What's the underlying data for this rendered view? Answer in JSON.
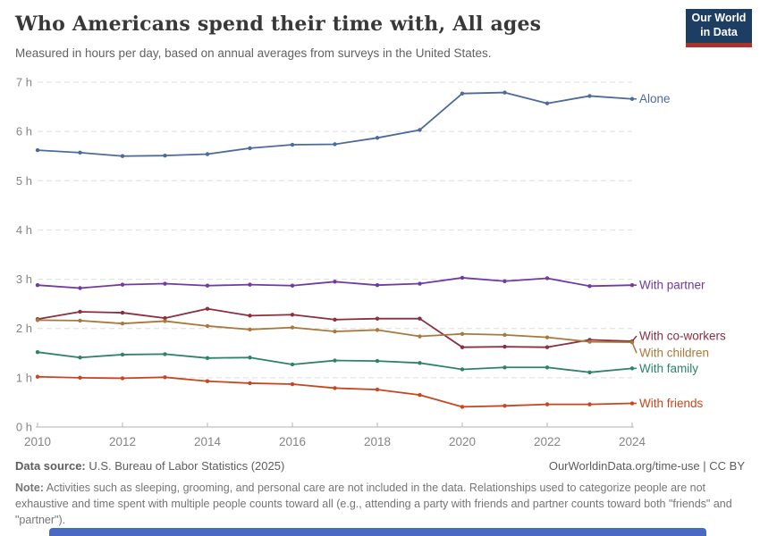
{
  "header": {
    "title": "Who Americans spend their time with, All ages",
    "subtitle": "Measured in hours per day, based on annual averages from surveys in the United States.",
    "logo": {
      "line1": "Our World",
      "line2": "in Data",
      "bg": "#1d3d63",
      "accent": "#b0302c"
    }
  },
  "chart_data": {
    "type": "line",
    "title": "Who Americans spend their time with, All ages",
    "subtitle": "Measured in hours per day, based on annual averages from surveys in the United States",
    "xlabel": "",
    "ylabel": "hours per day",
    "ylim": [
      0,
      7
    ],
    "grid": "horizontal-dashed",
    "legend_position": "labels-at-line-ends",
    "x": [
      2010,
      2011,
      2012,
      2013,
      2014,
      2015,
      2016,
      2017,
      2018,
      2019,
      2020,
      2021,
      2022,
      2023,
      2024
    ],
    "x_tick_labels": [
      "2010",
      "2012",
      "2014",
      "2016",
      "2018",
      "2020",
      "2022",
      "2024"
    ],
    "y_tick_labels": [
      "0 h",
      "1 h",
      "2 h",
      "3 h",
      "4 h",
      "5 h",
      "6 h",
      "7 h"
    ],
    "series": [
      {
        "name": "Alone",
        "color": "#4c6a9c",
        "values": [
          5.62,
          5.57,
          5.5,
          5.51,
          5.54,
          5.66,
          5.73,
          5.74,
          5.87,
          6.03,
          6.77,
          6.79,
          6.57,
          6.72,
          6.66
        ]
      },
      {
        "name": "With partner",
        "color": "#7139a3",
        "values": [
          2.88,
          2.82,
          2.89,
          2.91,
          2.87,
          2.89,
          2.87,
          2.95,
          2.88,
          2.91,
          3.03,
          2.96,
          3.02,
          2.86,
          2.88
        ]
      },
      {
        "name": "With co-workers",
        "color": "#8b2e3f",
        "values": [
          2.19,
          2.34,
          2.32,
          2.21,
          2.4,
          2.26,
          2.28,
          2.18,
          2.2,
          2.2,
          1.62,
          1.63,
          1.62,
          1.77,
          1.74
        ]
      },
      {
        "name": "With children",
        "color": "#a9783c",
        "values": [
          2.17,
          2.16,
          2.1,
          2.15,
          2.05,
          1.98,
          2.02,
          1.94,
          1.97,
          1.84,
          1.89,
          1.87,
          1.82,
          1.73,
          1.72
        ]
      },
      {
        "name": "With family",
        "color": "#2c8465",
        "values": [
          1.52,
          1.41,
          1.47,
          1.48,
          1.4,
          1.41,
          1.27,
          1.35,
          1.34,
          1.3,
          1.17,
          1.21,
          1.21,
          1.11,
          1.19
        ]
      },
      {
        "name": "With friends",
        "color": "#c9461d",
        "values": [
          1.02,
          1.0,
          0.99,
          1.01,
          0.93,
          0.89,
          0.87,
          0.79,
          0.76,
          0.65,
          0.41,
          0.43,
          0.46,
          0.46,
          0.48
        ]
      }
    ]
  },
  "footer": {
    "datasource_label": "Data source:",
    "datasource_value": " U.S. Bureau of Labor Statistics (2025)",
    "rights": "OurWorldinData.org/time-use | CC BY",
    "note_label": "Note:",
    "note_text": " Activities such as sleeping, grooming, and personal care are not included in the data. Relationships used to categorize people are not exhaustive and time spent with multiple people counts toward all (e.g., attending a party with friends and partner counts toward both \"friends\" and \"partner\")."
  },
  "timeline": {
    "color": "#4b68c5"
  }
}
